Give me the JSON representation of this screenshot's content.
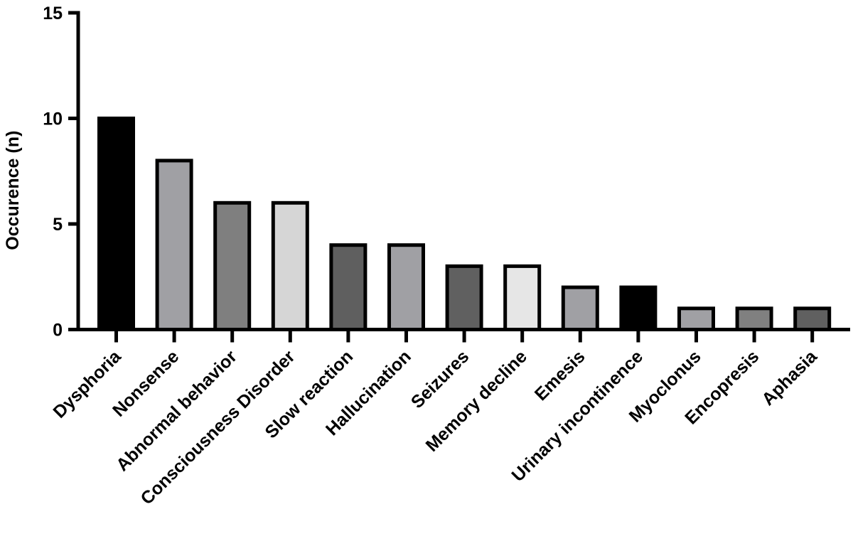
{
  "chart_data": {
    "type": "bar",
    "title": "",
    "xlabel": "",
    "ylabel": "Occurence (n)",
    "ylim": [
      0,
      15
    ],
    "yticks": [
      0,
      5,
      10,
      15
    ],
    "grid": false,
    "categories": [
      "Dysphoria",
      "Nonsense",
      "Abnormal behavior",
      "Consciousness Disorder",
      "Slow reaction",
      "Hallucination",
      "Seizures",
      "Memory decline",
      "Emesis",
      "Urinary incontinence",
      "Myoclonus",
      "Encopresis",
      "Aphasia"
    ],
    "values": [
      10,
      8,
      6,
      6,
      4,
      4,
      3,
      3,
      2,
      2,
      1,
      1,
      1
    ],
    "bar_colors": [
      "#000000",
      "#a0a0a4",
      "#7f7f7f",
      "#d6d6d6",
      "#5f5f5f",
      "#a0a0a4",
      "#606060",
      "#e6e6e6",
      "#a0a0a4",
      "#000000",
      "#a0a0a4",
      "#808080",
      "#606060"
    ]
  }
}
